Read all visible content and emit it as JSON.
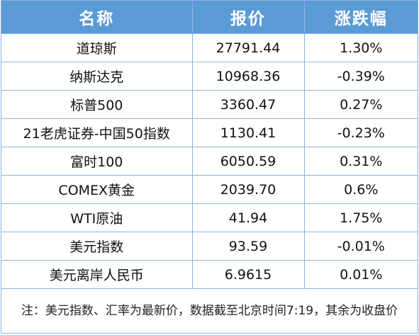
{
  "table": {
    "headers": [
      "名称",
      "报价",
      "涨跌幅"
    ],
    "rows": [
      {
        "name": "道琼斯",
        "price": "27791.44",
        "change": "1.30%"
      },
      {
        "name": "纳斯达克",
        "price": "10968.36",
        "change": "-0.39%"
      },
      {
        "name": "标普500",
        "price": "3360.47",
        "change": "0.27%"
      },
      {
        "name": "21老虎证券-中国50指数",
        "price": "1130.41",
        "change": "-0.23%"
      },
      {
        "name": "富时100",
        "price": "6050.59",
        "change": "0.31%"
      },
      {
        "name": "COMEX黄金",
        "price": "2039.70",
        "change": "0.6%"
      },
      {
        "name": "WTI原油",
        "price": "41.94",
        "change": "1.75%"
      },
      {
        "name": "美元指数",
        "price": "93.59",
        "change": "-0.01%"
      },
      {
        "name": "美元离岸人民币",
        "price": "6.9615",
        "change": "0.01%"
      }
    ],
    "note": "注：美元指数、汇率为最新价，数据截至北京时间7:19，其余为收盘价"
  },
  "colors": {
    "header_bg": "#5b9bd5",
    "header_text": "#ffffff",
    "border": "#8db3e2"
  }
}
